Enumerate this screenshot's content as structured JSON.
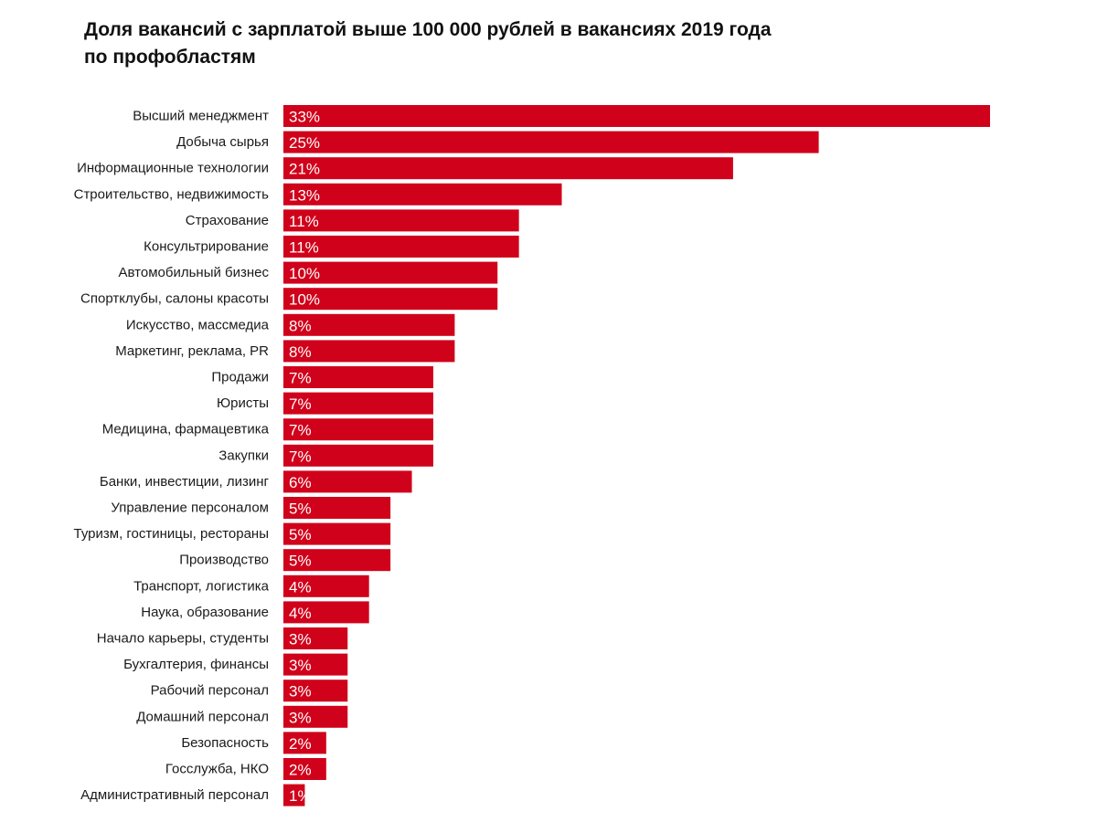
{
  "title": {
    "line1": "Доля вакансий с зарплатой выше 100 000 рублей в вакансиях 2019 года",
    "line2": "по профобластям"
  },
  "colors": {
    "bar": "#d0021b",
    "bar_text": "#ffffff",
    "category_text": "#1a1a1a"
  },
  "chart_data": {
    "type": "bar",
    "orientation": "horizontal",
    "title": "Доля вакансий с зарплатой выше 100 000 рублей в вакансиях 2019 года по профобластям",
    "xlabel": "",
    "ylabel": "",
    "xlim": [
      0,
      33
    ],
    "grid": false,
    "legend": "none",
    "categories": [
      "Высший менеджмент",
      "Добыча сырья",
      "Информационные технологии",
      "Строительство, недвижимость",
      "Страхование",
      "Консультрирование",
      "Автомобильный бизнес",
      "Спортклубы, салоны красоты",
      "Искусство, массмедиа",
      "Маркетинг, реклама, PR",
      "Продажи",
      "Юристы",
      "Медицина, фармацевтика",
      "Закупки",
      "Банки, инвестиции, лизинг",
      "Управление персоналом",
      "Туризм, гостиницы, рестораны",
      "Производство",
      "Транспорт, логистика",
      "Наука, образование",
      "Начало карьеры, студенты",
      "Бухгалтерия, финансы",
      "Рабочий персонал",
      "Домашний персонал",
      "Безопасность",
      "Госслужба, НКО",
      "Административный персонал"
    ],
    "values": [
      33,
      25,
      21,
      13,
      11,
      11,
      10,
      10,
      8,
      8,
      7,
      7,
      7,
      7,
      6,
      5,
      5,
      5,
      4,
      4,
      3,
      3,
      3,
      3,
      2,
      2,
      1
    ],
    "value_labels": [
      "33%",
      "25%",
      "21%",
      "13%",
      "11%",
      "11%",
      "10%",
      "10%",
      "8%",
      "8%",
      "7%",
      "7%",
      "7%",
      "7%",
      "6%",
      "5%",
      "5%",
      "5%",
      "4%",
      "4%",
      "3%",
      "3%",
      "3%",
      "3%",
      "2%",
      "2%",
      "1%"
    ]
  }
}
